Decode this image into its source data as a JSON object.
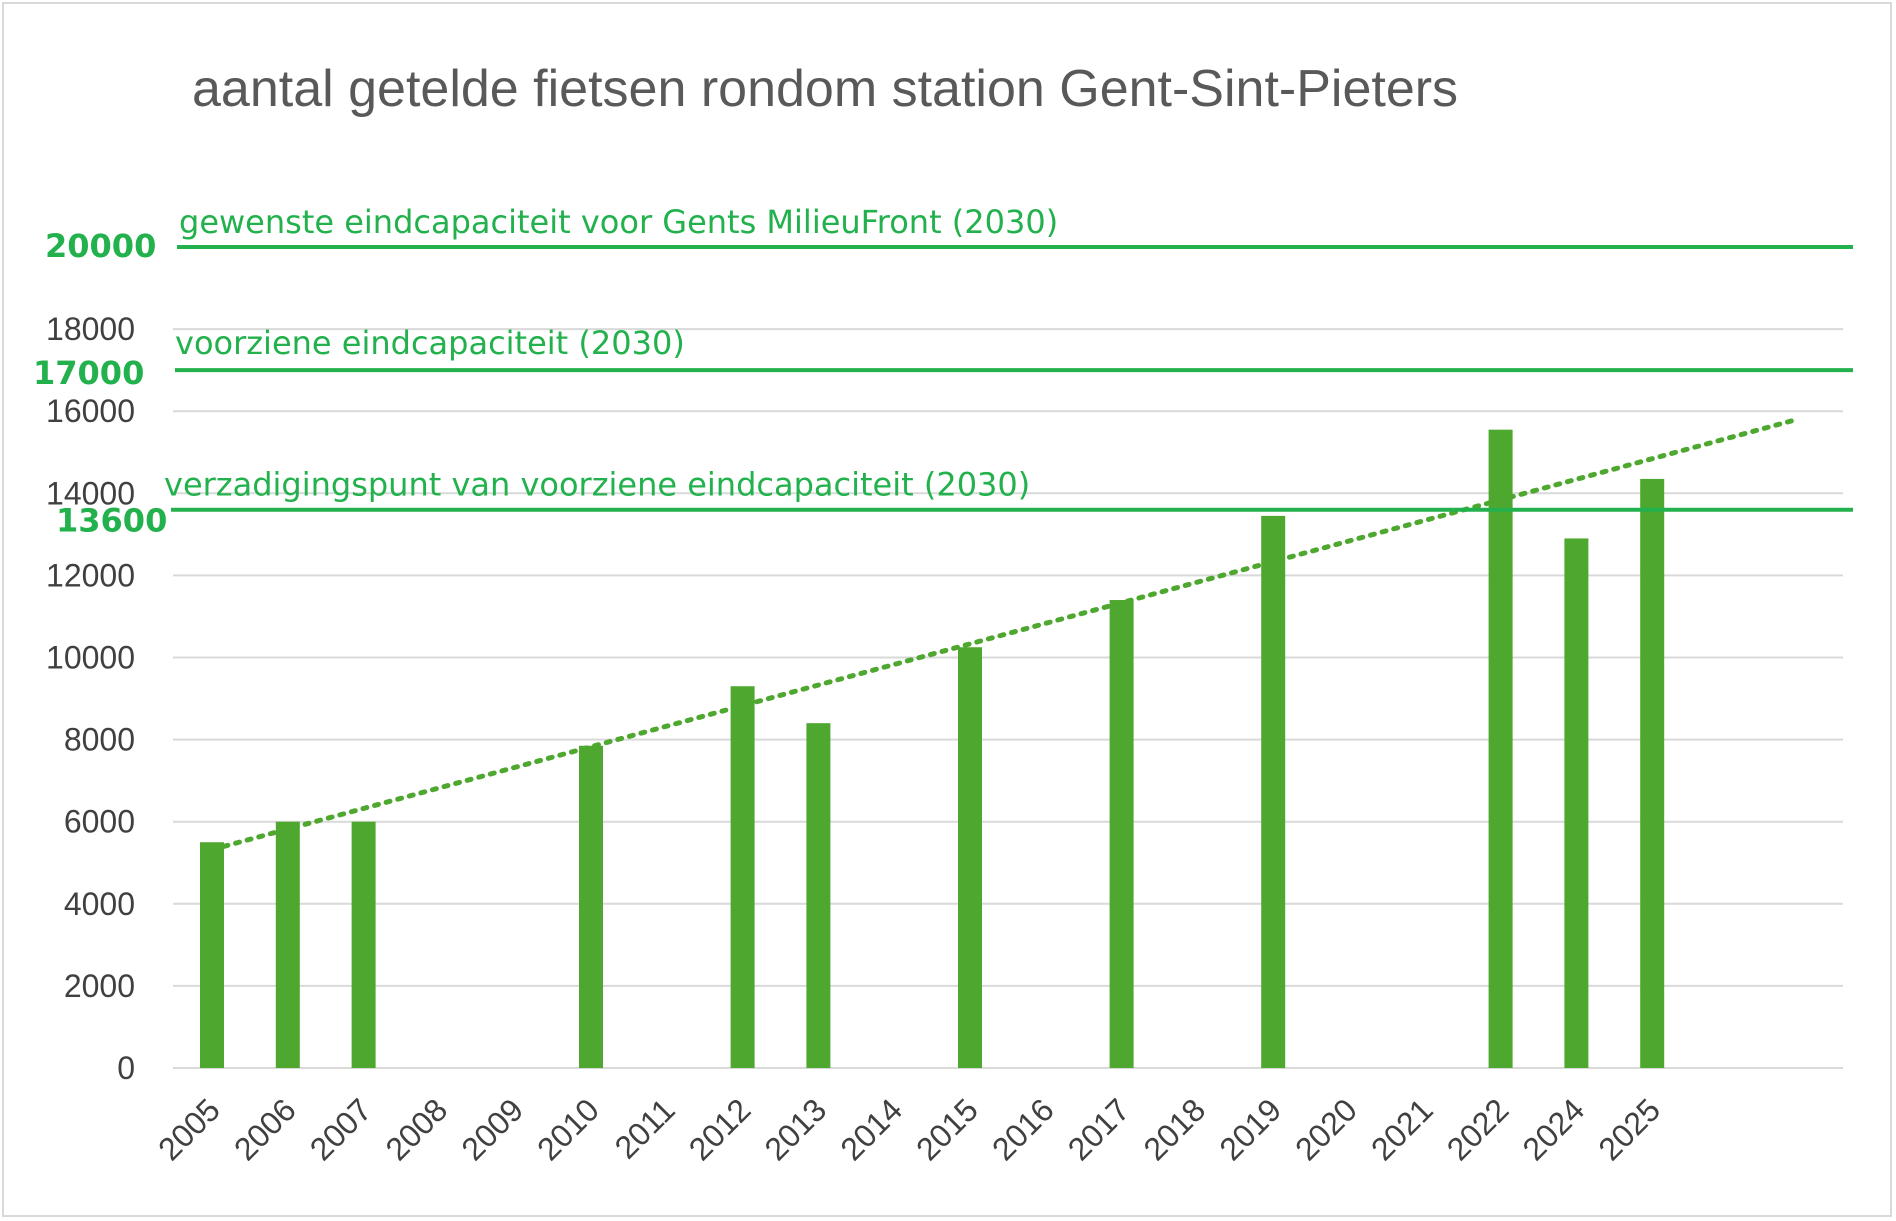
{
  "chart_data": {
    "type": "bar",
    "title": "aantal getelde fietsen rondom station Gent-Sint-Pieters",
    "categories": [
      "2005",
      "2006",
      "2007",
      "2008",
      "2009",
      "2010",
      "2011",
      "2012",
      "2013",
      "2014",
      "2015",
      "2016",
      "2017",
      "2018",
      "2019",
      "2020",
      "2021",
      "2022",
      "2024",
      "2025"
    ],
    "values": [
      5500,
      6000,
      6000,
      null,
      null,
      7850,
      null,
      9300,
      8400,
      null,
      10250,
      null,
      11400,
      null,
      13450,
      null,
      null,
      15550,
      12900,
      14350
    ],
    "ylim": [
      0,
      20000
    ],
    "yticks": [
      0,
      2000,
      4000,
      6000,
      8000,
      10000,
      12000,
      14000,
      16000,
      18000
    ],
    "grid": true,
    "bar_color": "#4ea72e",
    "reference_lines": [
      {
        "label": "gewenste eindcapaciteit voor Gents MilieuFront (2030)",
        "value": 20000,
        "value_label": "20000"
      },
      {
        "label": "voorziene eindcapaciteit (2030)",
        "value": 17000,
        "value_label": "17000"
      },
      {
        "label": "verzadigingspunt van voorziene eindcapaciteit (2030)",
        "value": 13600,
        "value_label": "13600"
      }
    ],
    "reference_color": "#22b14c",
    "trendline": {
      "type": "linear",
      "style": "dotted",
      "start_value": 5400,
      "end_value": 15800
    }
  }
}
